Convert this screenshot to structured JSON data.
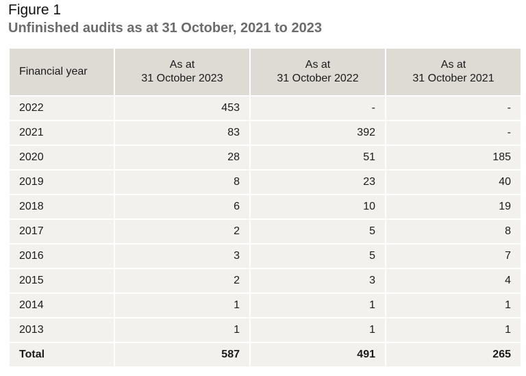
{
  "figure": {
    "label": "Figure 1",
    "title": "Unfinished audits as at 31 October, 2021 to 2023"
  },
  "table": {
    "headers": [
      {
        "line1": "Financial year",
        "line2": ""
      },
      {
        "line1": "As at",
        "line2": "31 October 2023"
      },
      {
        "line1": "As at",
        "line2": "31 October 2022"
      },
      {
        "line1": "As at",
        "line2": "31 October 2021"
      }
    ],
    "rows": [
      [
        "2022",
        "453",
        "-",
        "-"
      ],
      [
        "2021",
        "83",
        "392",
        "-"
      ],
      [
        "2020",
        "28",
        "51",
        "185"
      ],
      [
        "2019",
        "8",
        "23",
        "40"
      ],
      [
        "2018",
        "6",
        "10",
        "19"
      ],
      [
        "2017",
        "2",
        "5",
        "8"
      ],
      [
        "2016",
        "3",
        "5",
        "7"
      ],
      [
        "2015",
        "2",
        "3",
        "4"
      ],
      [
        "2014",
        "1",
        "1",
        "1"
      ],
      [
        "2013",
        "1",
        "1",
        "1"
      ]
    ],
    "total": [
      "Total",
      "587",
      "491",
      "265"
    ]
  },
  "colors": {
    "header_bg": "#dedad4",
    "cell_bg": "#f3f1ee",
    "title": "#6b6b6b"
  }
}
